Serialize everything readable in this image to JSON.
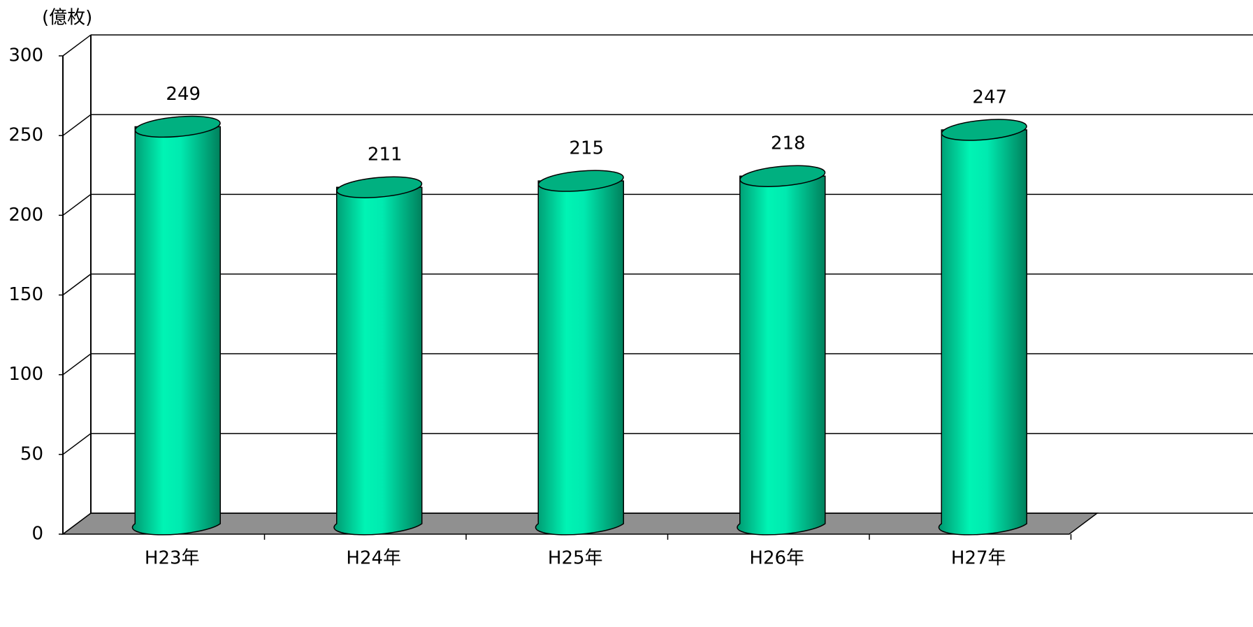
{
  "chart_data": {
    "type": "bar",
    "y_axis_label": "(億枚)",
    "categories": [
      "H23年",
      "H24年",
      "H25年",
      "H26年",
      "H27年"
    ],
    "values": [
      249,
      211,
      215,
      218,
      247
    ],
    "color": "#00f0b0",
    "ylim": [
      0,
      300
    ],
    "yticks": [
      0,
      50,
      100,
      150,
      200,
      250,
      300
    ],
    "grid": true
  }
}
